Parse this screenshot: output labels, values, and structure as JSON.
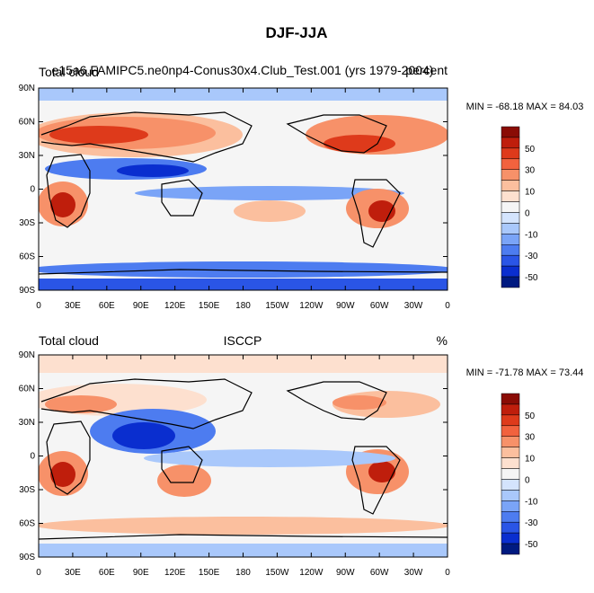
{
  "figure": {
    "title": "DJF-JJA"
  },
  "chart_data": [
    {
      "type": "heatmap",
      "left_label": "Total cloud",
      "center_label": "e15a6.FAMIPC5.ne0np4-Conus30x4.Club_Test.001 (yrs 1979-2004)",
      "right_label": "percent",
      "stats": "MIN = -68.18 MAX =  84.03",
      "x_tick_labels": [
        "0",
        "30E",
        "60E",
        "90E",
        "120E",
        "150E",
        "180",
        "150W",
        "120W",
        "90W",
        "60W",
        "30W",
        "0"
      ],
      "y_tick_labels": [
        "90N",
        "60N",
        "30N",
        "0",
        "30S",
        "60S",
        "90S"
      ],
      "colorbar_labels": [
        "50",
        "30",
        "10",
        "0",
        "-10",
        "-30",
        "-50"
      ]
    },
    {
      "type": "heatmap",
      "left_label": "Total cloud",
      "center_label": "ISCCP",
      "right_label": "%",
      "stats": "MIN = -71.78 MAX =  73.44",
      "x_tick_labels": [
        "0",
        "30E",
        "60E",
        "90E",
        "120E",
        "150E",
        "180",
        "150W",
        "120W",
        "90W",
        "60W",
        "30W",
        "0"
      ],
      "y_tick_labels": [
        "90N",
        "60N",
        "30N",
        "0",
        "30S",
        "60S",
        "90S"
      ],
      "colorbar_labels": [
        "50",
        "30",
        "10",
        "0",
        "-10",
        "-30",
        "-50"
      ]
    }
  ],
  "colors": {
    "scale": [
      "#001a80",
      "#0a2ecf",
      "#2a55e6",
      "#4d7cf0",
      "#7aa4f7",
      "#a9c8fb",
      "#d4e4fd",
      "#f5f5f5",
      "#fde0cf",
      "#fbbf9e",
      "#f79169",
      "#f2623e",
      "#de3a1b",
      "#bf1e0c",
      "#8a0c05"
    ],
    "land_outline": "#000000"
  }
}
